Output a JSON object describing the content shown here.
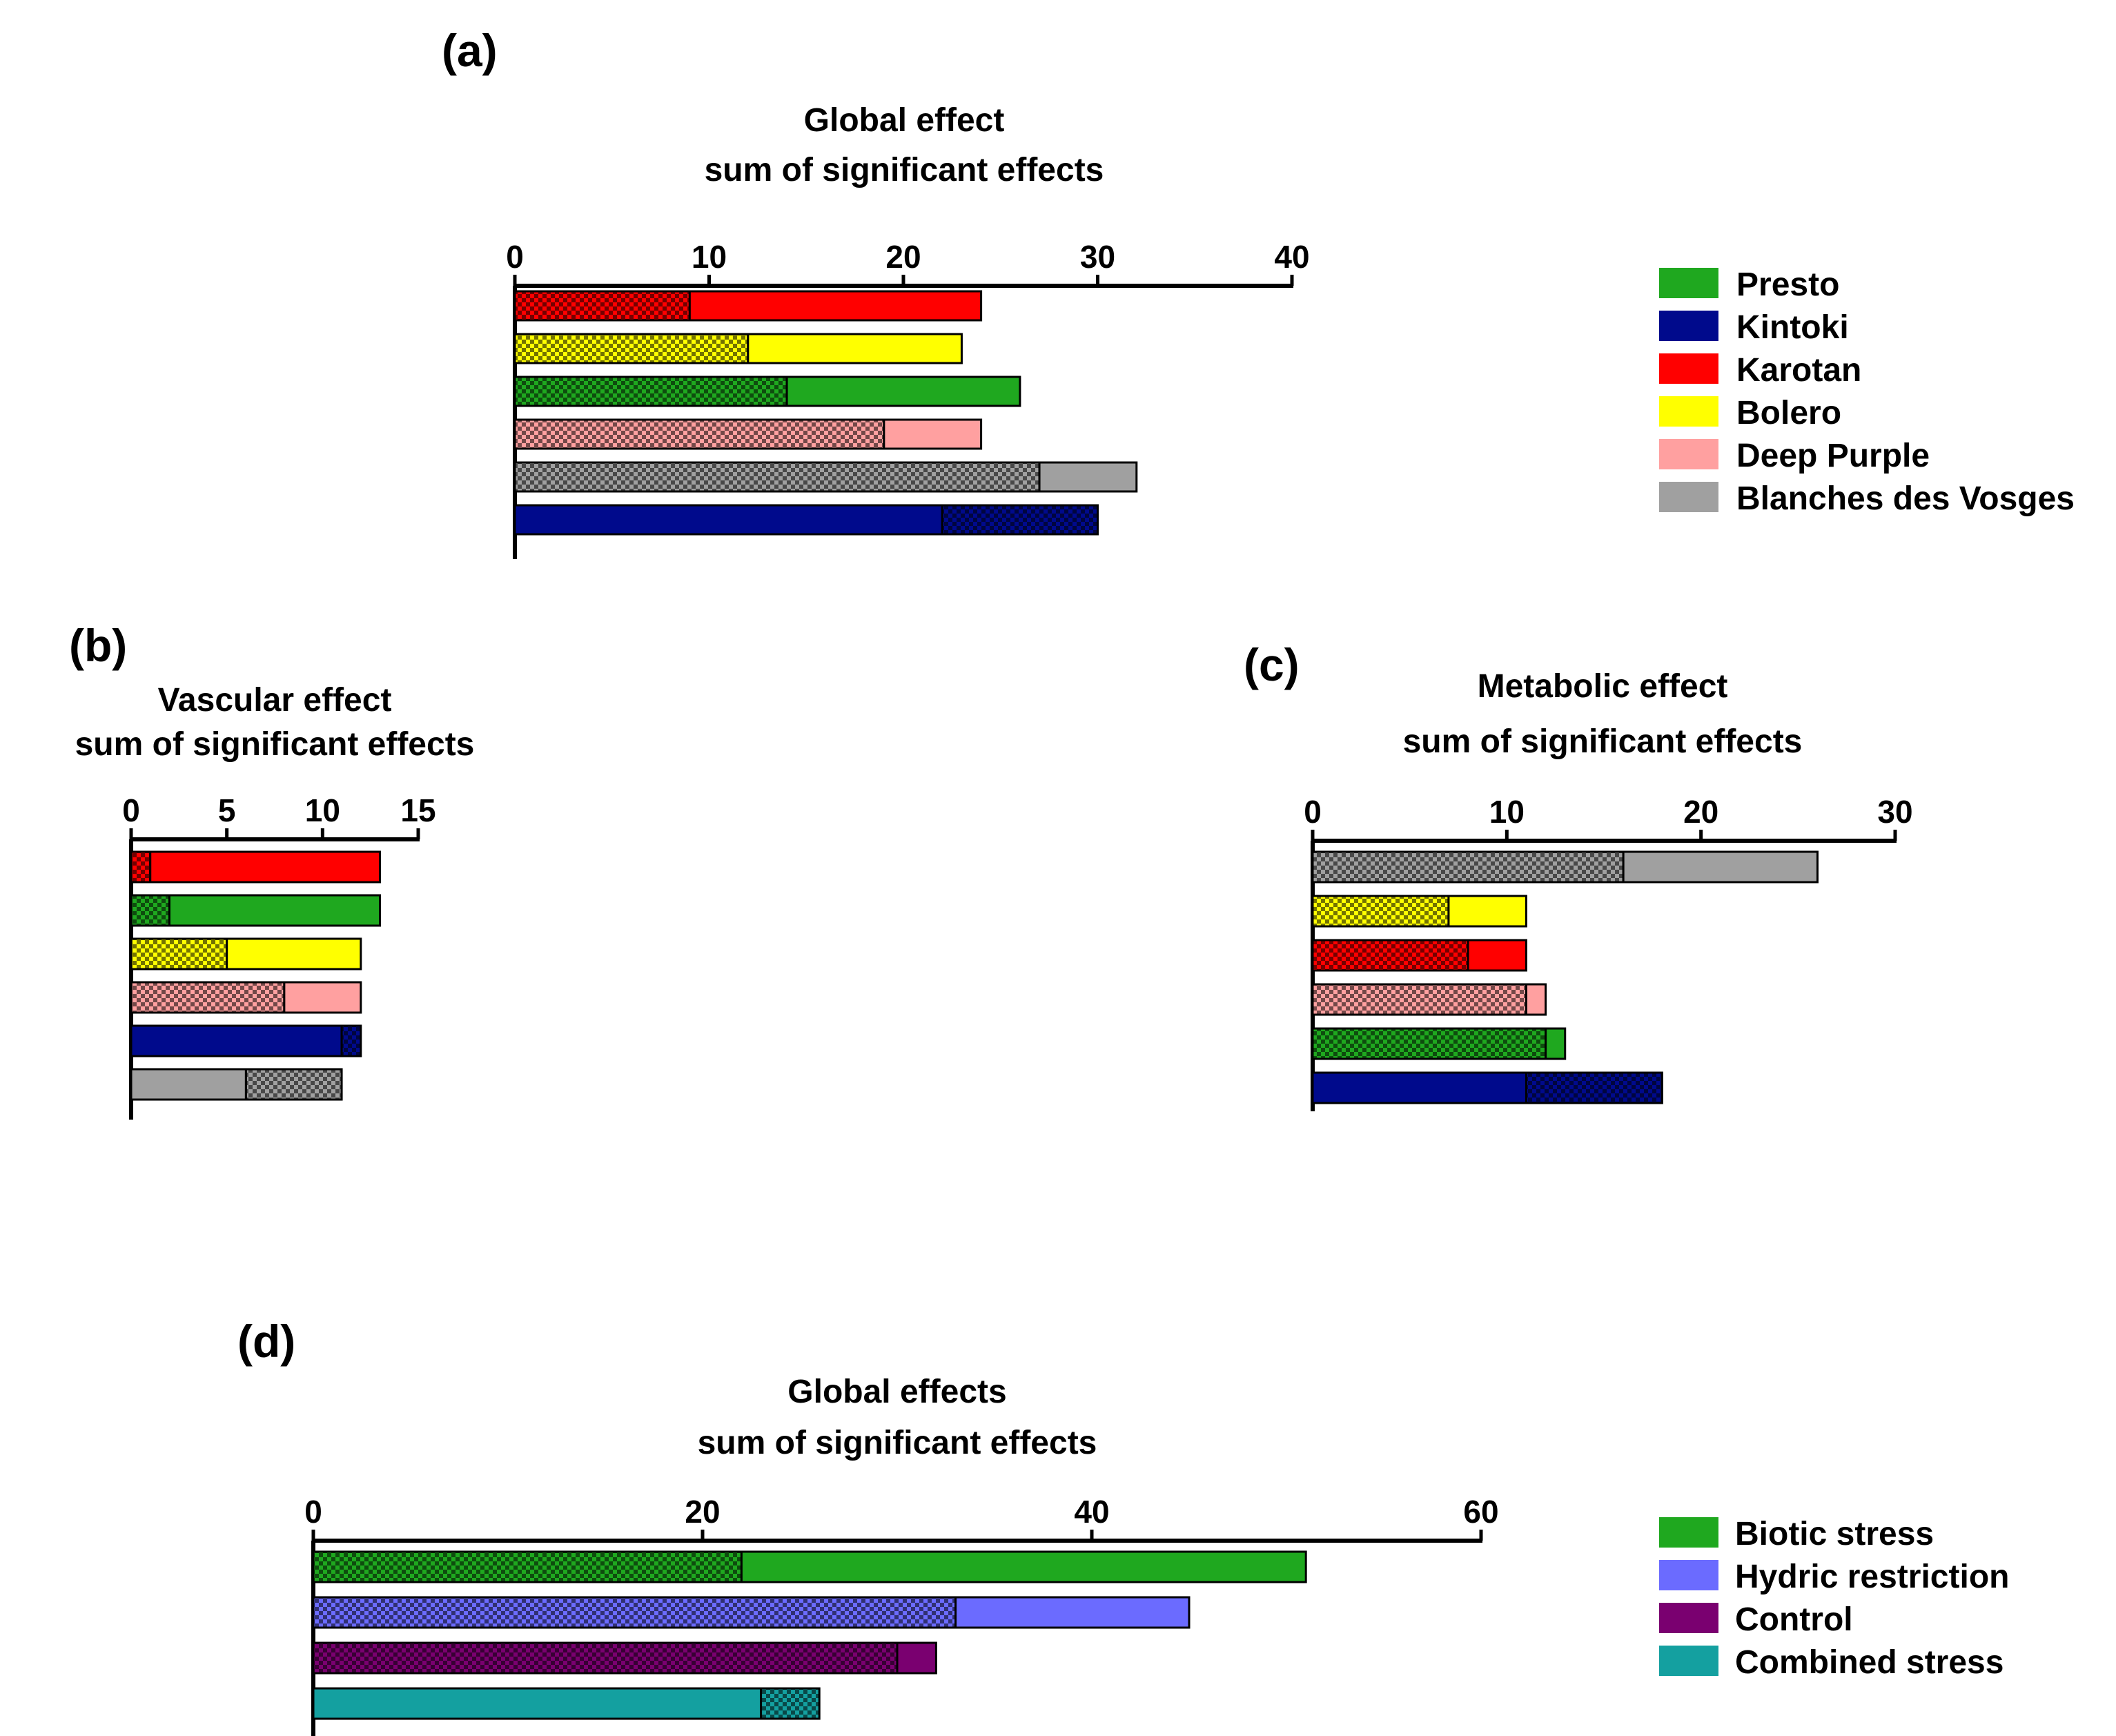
{
  "colors": {
    "Presto": "#1fa81f",
    "Kintoki": "#000a8c",
    "Karotan": "#ff0000",
    "Bolero": "#ffff00",
    "Deep Purple": "#ffa0a0",
    "Blanches des Vosges": "#a0a0a0",
    "Biotic stress": "#1fa81f",
    "Hydric restriction": "#6b6bff",
    "Control": "#7a0070",
    "Combined stress": "#14a0a0"
  },
  "legends": [
    {
      "panel": "a",
      "items": [
        "Presto",
        "Kintoki",
        "Karotan",
        "Bolero",
        "Deep Purple",
        "Blanches des Vosges"
      ]
    },
    {
      "panel": "d",
      "items": [
        "Biotic stress",
        "Hydric restriction",
        "Control",
        "Combined stress"
      ]
    }
  ],
  "chart_data": [
    {
      "panel": "a",
      "label": "(a)",
      "type": "bar",
      "orientation": "horizontal",
      "stacked": true,
      "title": [
        "Global effect",
        "sum of significant effects"
      ],
      "xlim": [
        0,
        40
      ],
      "xticks": [
        0,
        10,
        20,
        30,
        40
      ],
      "categories": [
        "Karotan",
        "Bolero",
        "Presto",
        "Deep Purple",
        "Blanches des Vosges",
        "Kintoki"
      ],
      "series": [
        {
          "name": "hatched",
          "values": [
            9,
            12,
            14,
            19,
            27,
            0
          ]
        },
        {
          "name": "solid",
          "values": [
            15,
            11,
            12,
            5,
            5,
            22
          ]
        },
        {
          "name": "hatched (end)",
          "values": [
            0,
            0,
            0,
            0,
            0,
            8
          ]
        }
      ]
    },
    {
      "panel": "b",
      "label": "(b)",
      "type": "bar",
      "orientation": "horizontal",
      "stacked": true,
      "title": [
        "Vascular effect",
        "sum of significant effects"
      ],
      "xlim": [
        0,
        15
      ],
      "xticks": [
        0,
        5,
        10,
        15
      ],
      "categories": [
        "Karotan",
        "Presto",
        "Bolero",
        "Deep Purple",
        "Kintoki",
        "Blanches des Vosges"
      ],
      "series": [
        {
          "name": "hatched",
          "values": [
            1,
            2,
            5,
            8,
            0,
            0
          ]
        },
        {
          "name": "solid",
          "values": [
            12,
            11,
            7,
            4,
            11,
            6
          ]
        },
        {
          "name": "hatched (end)",
          "values": [
            0,
            0,
            0,
            0,
            1,
            5
          ]
        }
      ]
    },
    {
      "panel": "c",
      "label": "(c)",
      "type": "bar",
      "orientation": "horizontal",
      "stacked": true,
      "title": [
        "Metabolic effect",
        "sum of significant effects"
      ],
      "xlim": [
        0,
        30
      ],
      "xticks": [
        0,
        10,
        20,
        30
      ],
      "categories": [
        "Blanches des Vosges",
        "Bolero",
        "Karotan",
        "Deep Purple",
        "Presto",
        "Kintoki"
      ],
      "series": [
        {
          "name": "hatched",
          "values": [
            16,
            7,
            8,
            11,
            12,
            0
          ]
        },
        {
          "name": "solid",
          "values": [
            10,
            4,
            3,
            1,
            1,
            11
          ]
        },
        {
          "name": "hatched (end)",
          "values": [
            0,
            0,
            0,
            0,
            0,
            7
          ]
        }
      ]
    },
    {
      "panel": "d",
      "label": "(d)",
      "type": "bar",
      "orientation": "horizontal",
      "stacked": true,
      "title": [
        "Global effects",
        "sum of significant effects"
      ],
      "xlim": [
        0,
        60
      ],
      "xticks": [
        0,
        20,
        40,
        60
      ],
      "categories": [
        "Biotic stress",
        "Hydric restriction",
        "Control",
        "Combined stress"
      ],
      "series": [
        {
          "name": "hatched",
          "values": [
            22,
            33,
            30,
            0
          ]
        },
        {
          "name": "solid",
          "values": [
            29,
            12,
            2,
            23
          ]
        },
        {
          "name": "hatched (end)",
          "values": [
            0,
            0,
            0,
            3
          ]
        }
      ]
    }
  ]
}
